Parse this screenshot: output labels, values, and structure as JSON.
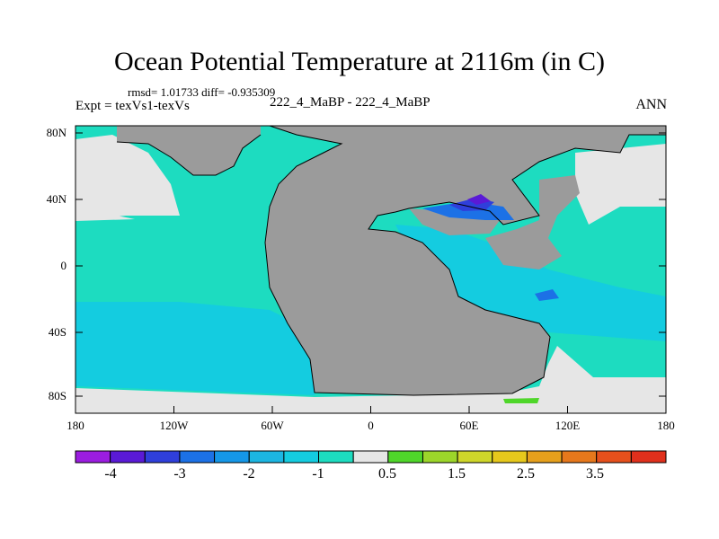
{
  "title": "Ocean Potential Temperature at 2116m (in C)",
  "stats": "rmsd= 1.01733 diff= -0.935309",
  "expt": "Expt = texVs1-texVs",
  "case_label": "222_4_MaBP - 222_4_MaBP",
  "season": "ANN",
  "lat_labels": [
    "80N",
    "40N",
    "0",
    "40S",
    "80S"
  ],
  "lon_labels": [
    "180",
    "120W",
    "60W",
    "0",
    "60E",
    "120E",
    "180"
  ],
  "colorbar": {
    "labels": [
      "-4",
      "-3",
      "-2",
      "-1",
      "0.5",
      "1.5",
      "2.5",
      "3.5"
    ],
    "colors": [
      "#9b1de0",
      "#5a1ad6",
      "#2f3fdb",
      "#1c71e6",
      "#1597e8",
      "#1cb6e2",
      "#14cce0",
      "#1ddcc0",
      "#e6e6e6",
      "#4fd62a",
      "#9cd62a",
      "#cfd62a",
      "#e6c81c",
      "#e6a01c",
      "#e6781c",
      "#e6501c",
      "#e0301c"
    ]
  },
  "map_colors": {
    "land": "#9b9b9b",
    "nodata": "#e6e6e6",
    "anom_neg1": "#1ddcc0",
    "anom_neg1_5": "#14cce0",
    "anom_neg2": "#1cb6e2",
    "anom_neg2_5": "#1597e8",
    "anom_neg3": "#1c71e6",
    "anom_neg3_5": "#2f3fdb",
    "anom_neg4": "#5a1ad6",
    "anom_pos": "#4fd62a"
  }
}
